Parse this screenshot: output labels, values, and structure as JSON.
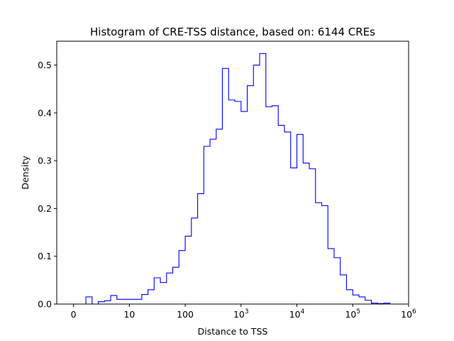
{
  "chart_data": {
    "type": "histogram-step",
    "title": "Histogram of CRE-TSS distance, based on: 6144 CREs",
    "xlabel": "Distance to TSS",
    "ylabel": "Density",
    "x_scale": "log10(1 + distance)",
    "xlim_log10": [
      -0.3,
      6.0
    ],
    "ylim": [
      0,
      0.55
    ],
    "grid": false,
    "legend": "none",
    "line_color": "#0000ff",
    "x_ticks": [
      {
        "pos": 0,
        "label": "0",
        "sup": ""
      },
      {
        "pos": 1,
        "label": "10",
        "sup": ""
      },
      {
        "pos": 2,
        "label": "100",
        "sup": ""
      },
      {
        "pos": 3,
        "label": "10",
        "sup": "3"
      },
      {
        "pos": 4,
        "label": "10",
        "sup": "4"
      },
      {
        "pos": 5,
        "label": "10",
        "sup": "5"
      },
      {
        "pos": 6,
        "label": "10",
        "sup": "6"
      }
    ],
    "y_ticks": [
      {
        "value": 0.0,
        "label": "0.0"
      },
      {
        "value": 0.1,
        "label": "0.1"
      },
      {
        "value": 0.2,
        "label": "0.2"
      },
      {
        "value": 0.3,
        "label": "0.3"
      },
      {
        "value": 0.4,
        "label": "0.4"
      },
      {
        "value": 0.5,
        "label": "0.5"
      }
    ],
    "bin_edges_log10": [
      0.0,
      0.111,
      0.222,
      0.333,
      0.444,
      0.555,
      0.666,
      0.777,
      0.888,
      1.0,
      1.111,
      1.222,
      1.333,
      1.444,
      1.555,
      1.666,
      1.777,
      1.888,
      2.0,
      2.111,
      2.222,
      2.333,
      2.444,
      2.555,
      2.666,
      2.777,
      2.888,
      3.0,
      3.111,
      3.222,
      3.333,
      3.444,
      3.555,
      3.666,
      3.777,
      3.888,
      4.0,
      4.111,
      4.222,
      4.333,
      4.444,
      4.555,
      4.666,
      4.777,
      4.888,
      5.0,
      5.111,
      5.222,
      5.333,
      5.444,
      5.555,
      5.666
    ],
    "densities": [
      0.0,
      0.0,
      0.015,
      0.0,
      0.005,
      0.007,
      0.018,
      0.01,
      0.01,
      0.01,
      0.01,
      0.02,
      0.03,
      0.055,
      0.045,
      0.065,
      0.077,
      0.112,
      0.142,
      0.18,
      0.231,
      0.33,
      0.345,
      0.366,
      0.493,
      0.427,
      0.424,
      0.403,
      0.457,
      0.5,
      0.524,
      0.413,
      0.415,
      0.374,
      0.36,
      0.285,
      0.355,
      0.295,
      0.283,
      0.212,
      0.206,
      0.116,
      0.097,
      0.061,
      0.03,
      0.019,
      0.015,
      0.008,
      0.002,
      0.001,
      0.002
    ]
  }
}
